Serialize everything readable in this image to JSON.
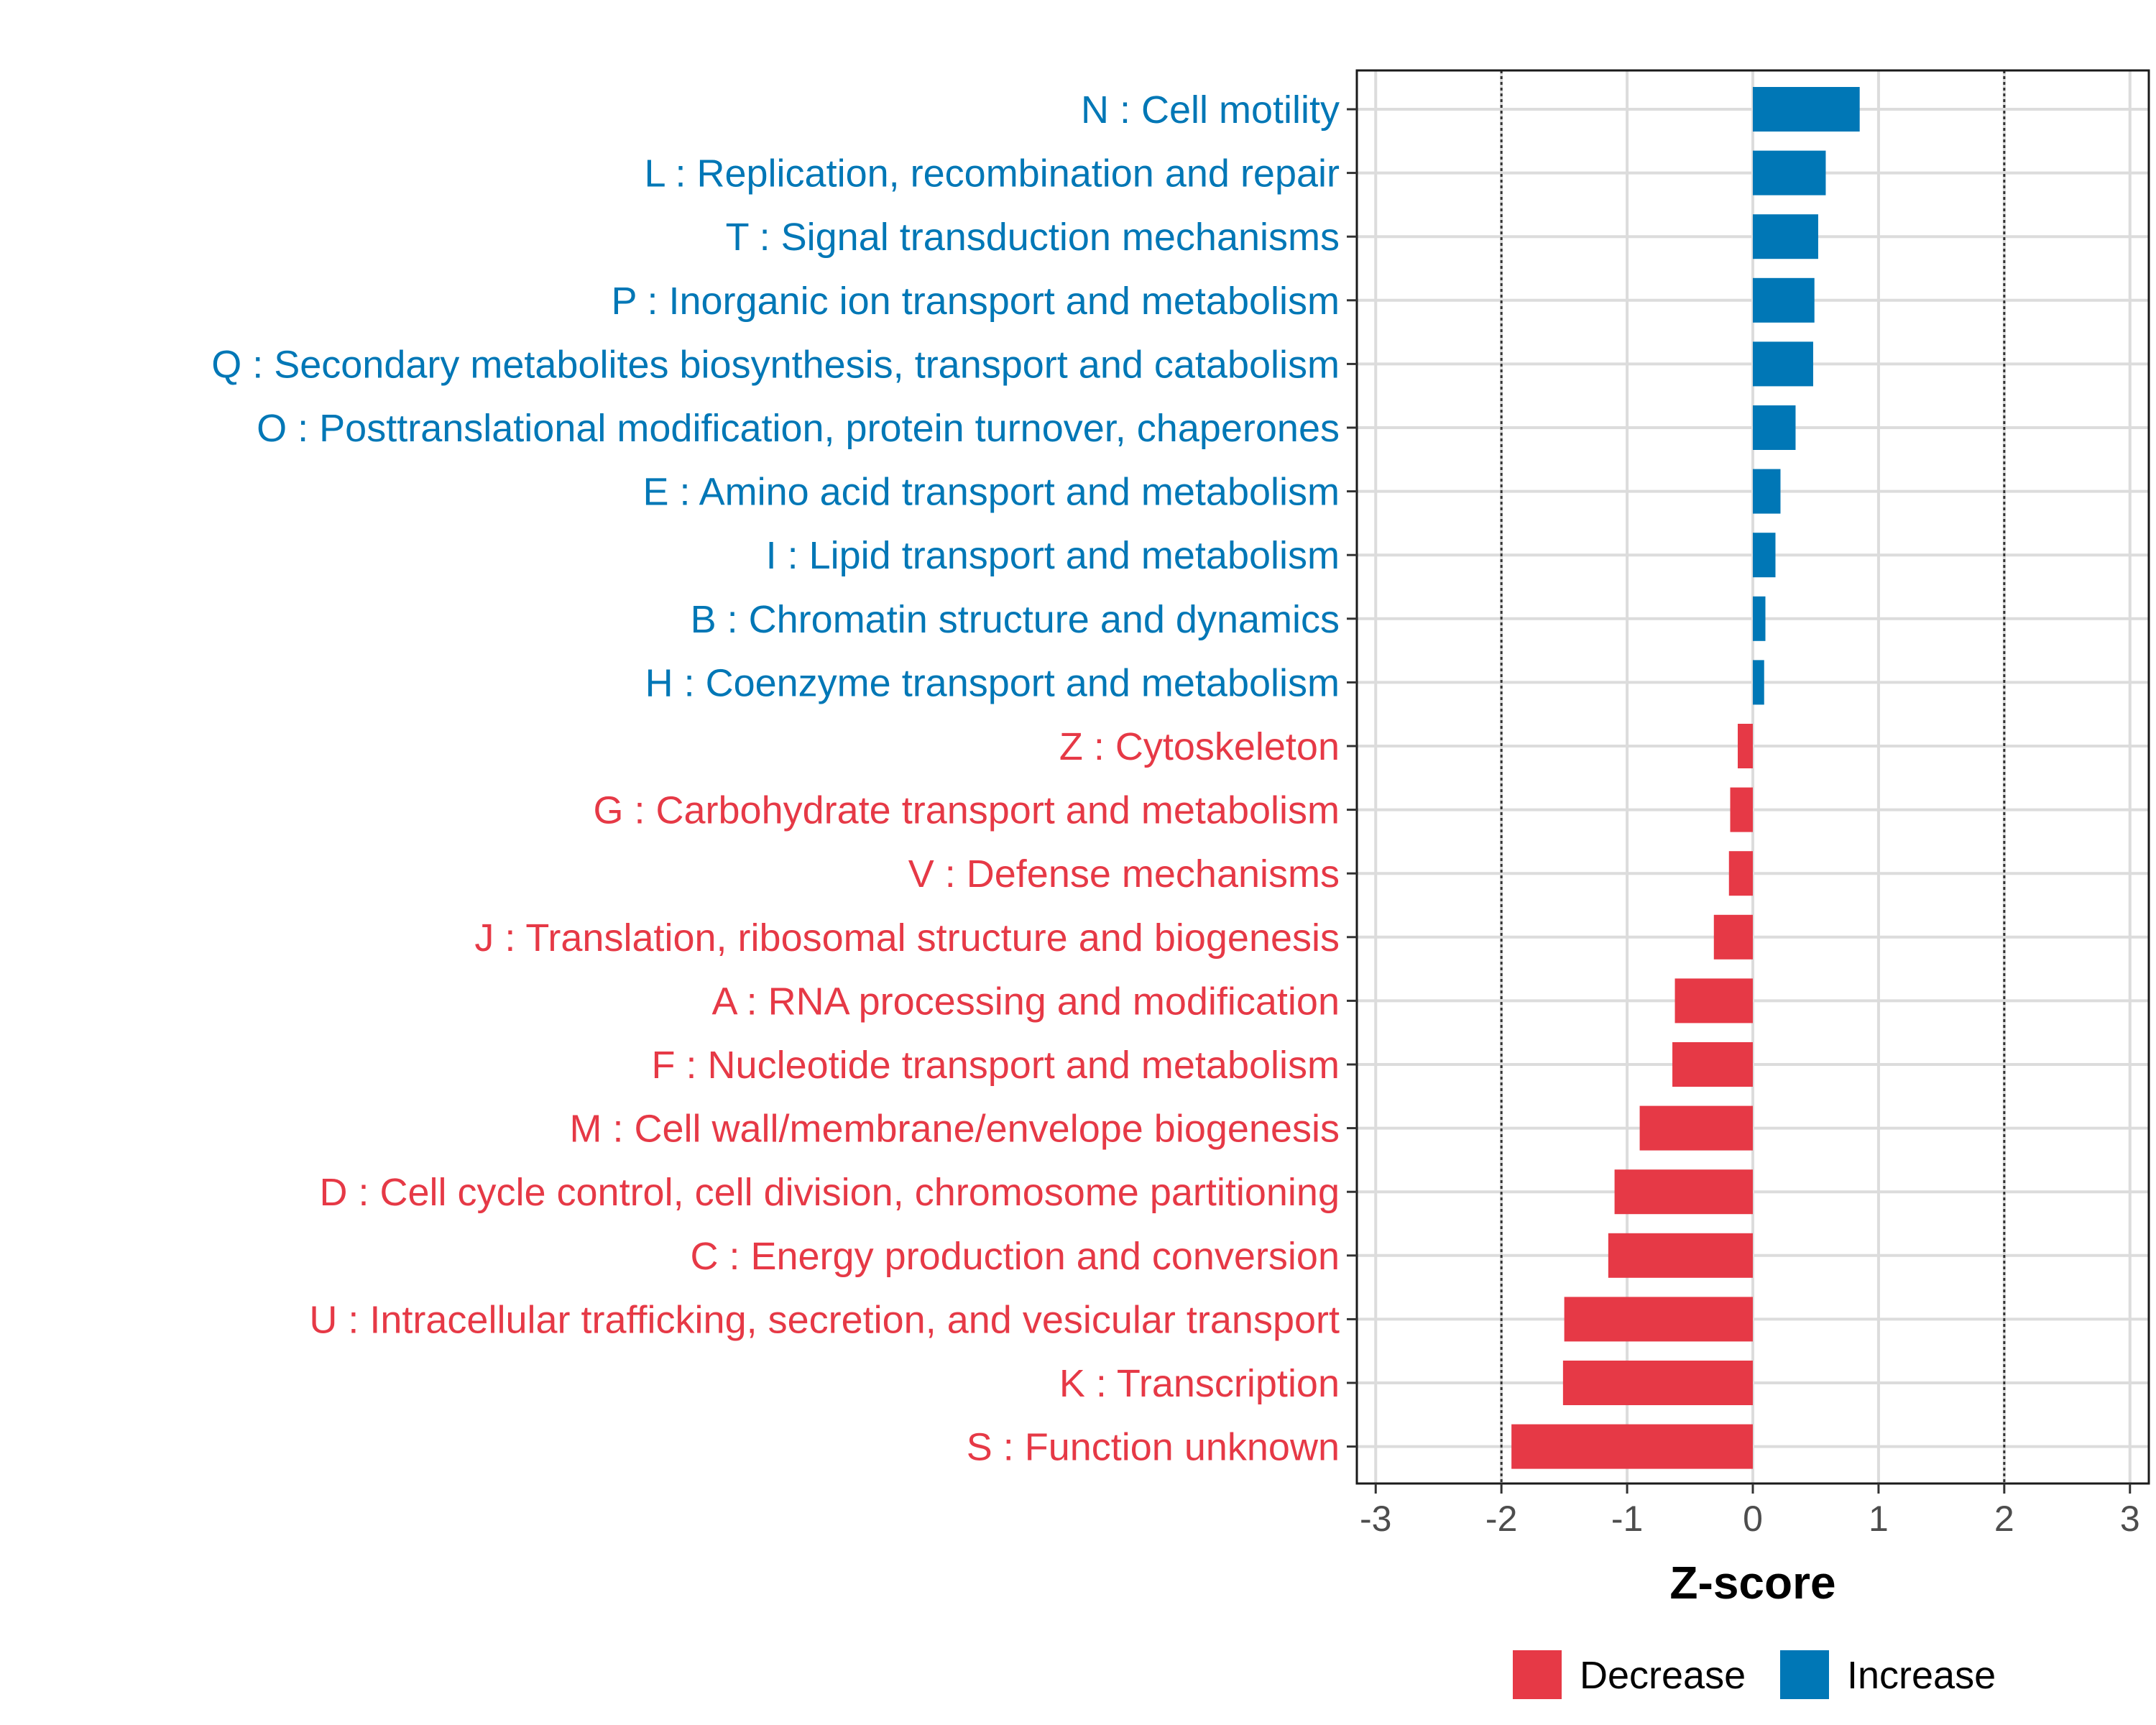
{
  "chart_data": {
    "type": "bar",
    "orientation": "horizontal",
    "title": "",
    "xlabel": "Z-score",
    "ylabel": "",
    "xlim": [
      -3.15,
      3.15
    ],
    "xticks": [
      -3,
      -2,
      -1,
      0,
      1,
      2,
      3
    ],
    "xtick_labels": [
      "-3",
      "-2",
      "-1",
      "0",
      "1",
      "2",
      "3"
    ],
    "reference_lines": [
      -2,
      2
    ],
    "grid": true,
    "legend_position": "bottom",
    "colors": {
      "Decrease": "#e63946",
      "Increase": "#0077b6"
    },
    "legend": [
      {
        "name": "Decrease",
        "color": "#e63946"
      },
      {
        "name": "Increase",
        "color": "#0077b6"
      }
    ],
    "bars": [
      {
        "category": "N : Cell motility",
        "value": 0.85,
        "group": "Increase"
      },
      {
        "category": "L : Replication, recombination and repair",
        "value": 0.58,
        "group": "Increase"
      },
      {
        "category": "T : Signal transduction mechanisms",
        "value": 0.52,
        "group": "Increase"
      },
      {
        "category": "P : Inorganic ion transport and metabolism",
        "value": 0.49,
        "group": "Increase"
      },
      {
        "category": "Q : Secondary metabolites biosynthesis, transport and catabolism",
        "value": 0.48,
        "group": "Increase"
      },
      {
        "category": "O : Posttranslational modification, protein turnover, chaperones",
        "value": 0.34,
        "group": "Increase"
      },
      {
        "category": "E : Amino acid transport and metabolism",
        "value": 0.22,
        "group": "Increase"
      },
      {
        "category": "I : Lipid transport and metabolism",
        "value": 0.18,
        "group": "Increase"
      },
      {
        "category": "B : Chromatin structure and dynamics",
        "value": 0.1,
        "group": "Increase"
      },
      {
        "category": "H : Coenzyme transport and metabolism",
        "value": 0.09,
        "group": "Increase"
      },
      {
        "category": "Z : Cytoskeleton",
        "value": -0.12,
        "group": "Decrease"
      },
      {
        "category": "G : Carbohydrate transport and metabolism",
        "value": -0.18,
        "group": "Decrease"
      },
      {
        "category": "V : Defense mechanisms",
        "value": -0.19,
        "group": "Decrease"
      },
      {
        "category": "J : Translation, ribosomal structure and biogenesis",
        "value": -0.31,
        "group": "Decrease"
      },
      {
        "category": "A : RNA processing and modification",
        "value": -0.62,
        "group": "Decrease"
      },
      {
        "category": "F : Nucleotide transport and metabolism",
        "value": -0.64,
        "group": "Decrease"
      },
      {
        "category": "M : Cell wall/membrane/envelope biogenesis",
        "value": -0.9,
        "group": "Decrease"
      },
      {
        "category": "D : Cell cycle control, cell division, chromosome partitioning",
        "value": -1.1,
        "group": "Decrease"
      },
      {
        "category": "C : Energy production and conversion",
        "value": -1.15,
        "group": "Decrease"
      },
      {
        "category": "U : Intracellular trafficking, secretion, and vesicular transport",
        "value": -1.5,
        "group": "Decrease"
      },
      {
        "category": "K : Transcription",
        "value": -1.51,
        "group": "Decrease"
      },
      {
        "category": "S : Function unknown",
        "value": -1.92,
        "group": "Decrease"
      }
    ]
  }
}
